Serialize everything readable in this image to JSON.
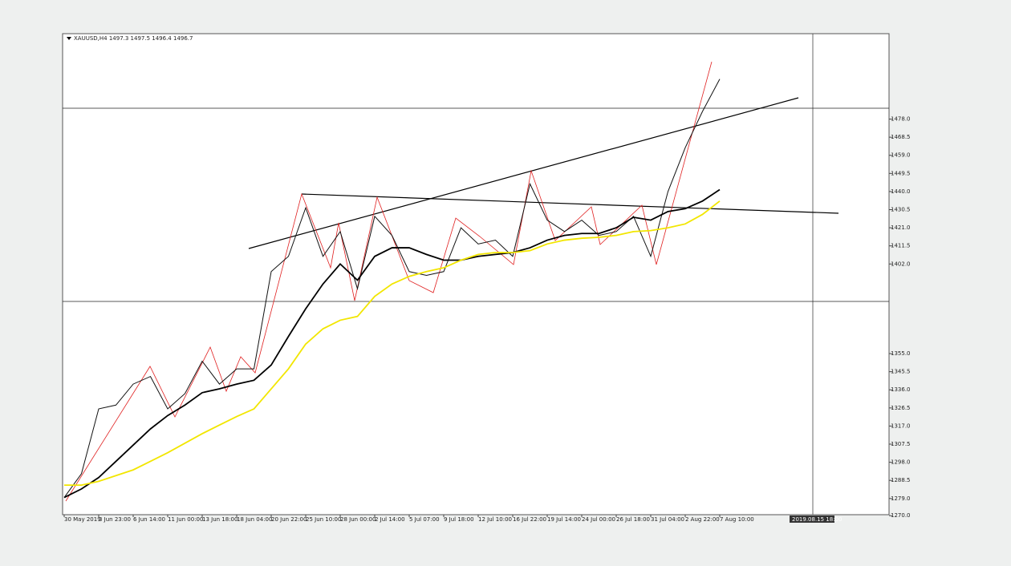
{
  "chart_data": {
    "type": "line",
    "title": "XAUUSD,H4  1497.3 1497.5 1496.4 1496.7",
    "annotation": "2019.08.15 18:00",
    "categories": [
      "30 May 2019",
      null,
      "3 Jun 23:00",
      null,
      "6 Jun 14:00",
      null,
      "11 Jun 00:00",
      null,
      "13 Jun 18:00",
      null,
      "18 Jun 04:00",
      null,
      "20 Jun 22:00",
      null,
      "25 Jun 10:00",
      null,
      "28 Jun 00:00",
      null,
      "2 Jul 14:00",
      null,
      "5 Jul 07:00",
      null,
      "9 Jul 18:00",
      null,
      "12 Jul 10:00",
      null,
      "16 Jul 22:00",
      null,
      "19 Jul 14:00",
      null,
      "24 Jul 00:00",
      null,
      "26 Jul 18:00",
      null,
      "31 Jul 04:00",
      null,
      "2 Aug 22:00",
      null,
      "7 Aug 10:00"
    ],
    "series": [
      {
        "color": "#111111",
        "values": [
          1279.5,
          1292,
          1326,
          1328,
          1339,
          1343,
          1326,
          1334,
          1351,
          1339,
          1347,
          1347,
          1398,
          1406,
          1431.5,
          1406,
          1419,
          1389,
          1427,
          1417,
          1398,
          1396,
          1398,
          1421,
          1412.5,
          1414.5,
          1406,
          1444,
          1425,
          1419,
          1425,
          1417,
          1419,
          1427,
          1406,
          1440,
          1463,
          1482,
          1499
        ]
      },
      {
        "color": "#000000",
        "values": [
          1279.5,
          1284,
          1290,
          1298.5,
          1307,
          1315.5,
          1322.5,
          1328,
          1334.5,
          1336.5,
          1339,
          1341,
          1349,
          1364,
          1378.5,
          1391.5,
          1402,
          1393.5,
          1406,
          1410.5,
          1410.5,
          1407,
          1404,
          1404,
          1406,
          1407,
          1408,
          1410.5,
          1414.5,
          1417,
          1418,
          1418,
          1421,
          1426.5,
          1425,
          1429.5,
          1431,
          1435,
          1441
        ]
      },
      {
        "color": "#f2e600",
        "values": [
          1286,
          1286,
          1288,
          1291,
          1294,
          1298.5,
          1303,
          1308,
          1313,
          1317.5,
          1322,
          1326,
          1336.5,
          1347,
          1360,
          1368,
          1372.5,
          1374.5,
          1385,
          1391.5,
          1395.5,
          1398,
          1400,
          1404,
          1407,
          1408,
          1408,
          1409,
          1412.5,
          1414.5,
          1415.5,
          1416,
          1417,
          1419,
          1419.5,
          1421,
          1423,
          1428,
          1435
        ]
      }
    ],
    "ylim": [
      1270.5,
      1522.8
    ],
    "yticks": [
      {
        "value": 1478,
        "label": "1478.0"
      },
      {
        "value": 1468.5,
        "label": "1468.5"
      },
      {
        "value": 1459,
        "label": "1459.0"
      },
      {
        "value": 1449.5,
        "label": "1449.5"
      },
      {
        "value": 1440,
        "label": "1440.0"
      },
      {
        "value": 1430.5,
        "label": "1430.5"
      },
      {
        "value": 1421,
        "label": "1421.0"
      },
      {
        "value": 1411.5,
        "label": "1411.5"
      },
      {
        "value": 1402,
        "label": "1402.0"
      },
      {
        "value": 1355,
        "label": "1355.0"
      },
      {
        "value": 1345.5,
        "label": "1345.5"
      },
      {
        "value": 1336,
        "label": "1336.0"
      },
      {
        "value": 1326.5,
        "label": "1326.5"
      },
      {
        "value": 1317,
        "label": "1317.0"
      },
      {
        "value": 1307.5,
        "label": "1307.5"
      },
      {
        "value": 1298,
        "label": "1298.0"
      },
      {
        "value": 1288.5,
        "label": "1288.5"
      },
      {
        "value": 1279,
        "label": "1279.0"
      },
      {
        "value": 1270,
        "label": "1270.0"
      }
    ],
    "grid": false
  }
}
